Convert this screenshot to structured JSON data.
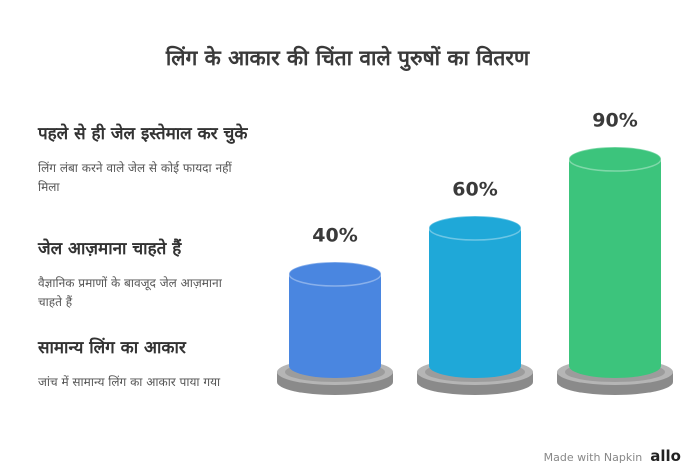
{
  "chart_data": {
    "type": "cylinder",
    "title": "लिंग के आकार की चिंता वाले पुरुषों का वितरण",
    "values": [
      40,
      60,
      90
    ],
    "value_labels": [
      "40%",
      "60%",
      "90%"
    ],
    "colors": [
      "#4a86e0",
      "#1fa8d8",
      "#3cc47c"
    ],
    "items": [
      {
        "title": "पहले से ही जेल इस्तेमाल कर चुके",
        "description": "लिंग लंबा करने वाले जेल से कोई फायदा नहीं मिला"
      },
      {
        "title": "जेल आज़माना चाहते हैं",
        "description": "वैज्ञानिक प्रमाणों के बावजूद जेल आज़माना चाहते हैं"
      },
      {
        "title": "सामान्य लिंग का आकार",
        "description": "जांच में सामान्य लिंग का आकार पाया गया"
      }
    ]
  },
  "footer": {
    "made_with": "Made with Napkin",
    "logo": "allo"
  }
}
